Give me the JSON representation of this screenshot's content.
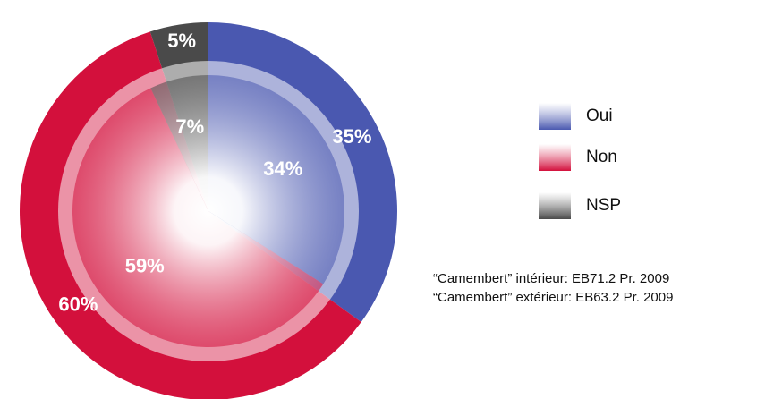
{
  "chart_data": {
    "type": "pie",
    "categories": [
      "Oui",
      "Non",
      "NSP"
    ],
    "colors": [
      "#4a58b0",
      "#d3103c",
      "#4a4a4a"
    ],
    "series": [
      {
        "values": [
          34,
          59,
          7
        ],
        "value_labels": [
          "34%",
          "59%",
          "7%"
        ]
      },
      {
        "values": [
          35,
          60,
          5
        ],
        "value_labels": [
          "35%",
          "60%",
          "5%"
        ]
      }
    ],
    "annotations": [
      "“Camembert” intérieur: EB71.2 Pr. 2009",
      "“Camembert” extérieur: EB63.2 Pr. 2009"
    ]
  }
}
